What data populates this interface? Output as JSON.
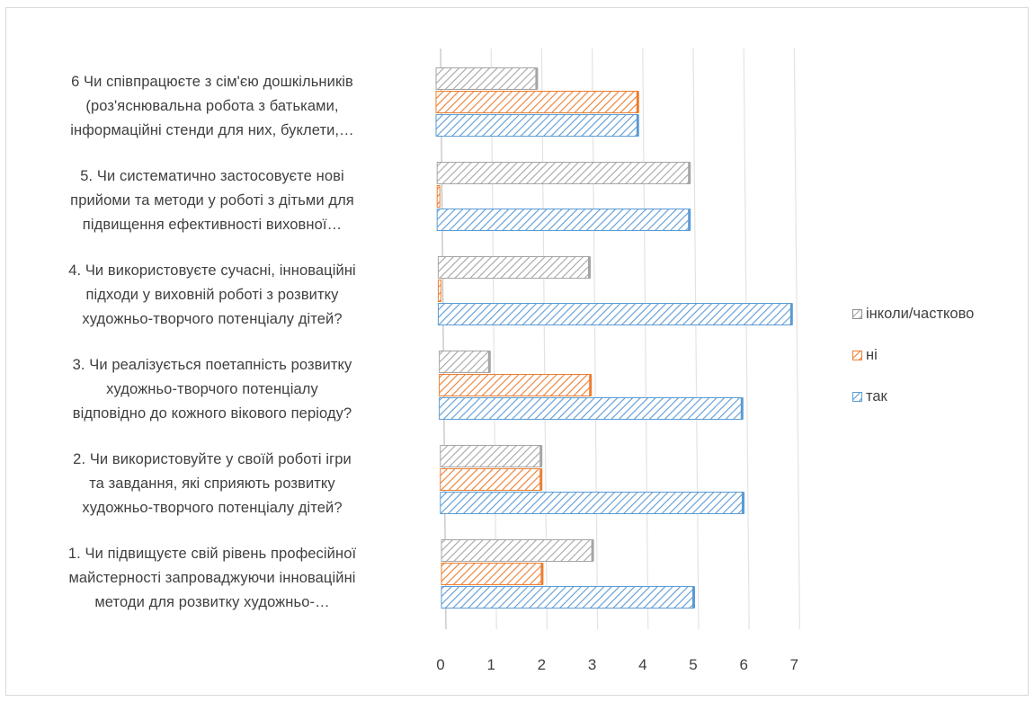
{
  "chart_data": {
    "type": "bar",
    "orientation": "horizontal",
    "categories": [
      "6 Чи співпрацюєте з сім'єю дошкільників (роз'яснювальна робота з батьками, інформаційні стенди для них, буклети,…",
      "5. Чи систематично застосовуєте нові прийоми та методи у роботі з дітьми для підвищення ефективності виховної…",
      "4. Чи використовуєте сучасні, інноваційні підходи у виховній роботі з розвитку художньо-творчого потенціалу дітей?",
      "3. Чи реалізується поетапність розвитку художньо-творчого потенціалу відповідно до кожного вікового періоду?",
      "2. Чи використовуйте у своїй роботі ігри та завдання, які сприяють розвитку художньо-творчого потенціалу дітей?",
      "1. Чи підвищуєте свій рівень професійної майстерності запроваджуючи інноваційні методи для розвитку художньо-…"
    ],
    "category_lines": [
      [
        "6 Чи співпрацюєте з сім'єю дошкільників",
        "(роз'яснювальна робота з батьками,",
        "інформаційні стенди для них, буклети,…"
      ],
      [
        "5. Чи систематично застосовуєте нові",
        "прийоми та методи у роботі з дітьми для",
        "підвищення ефективності виховної…"
      ],
      [
        "4. Чи використовуєте сучасні, інноваційні",
        "підходи у виховній роботі з розвитку",
        "художньо-творчого потенціалу дітей?"
      ],
      [
        "3. Чи реалізується поетапність розвитку",
        "художньо-творчого потенціалу",
        "відповідно до кожного вікового періоду?"
      ],
      [
        "2. Чи використовуйте у своїй роботі ігри",
        "та завдання, які сприяють розвитку",
        "художньо-творчого потенціалу дітей?"
      ],
      [
        "1. Чи підвищуєте свій рівень професійної",
        "майстерності запроваджуючи інноваційні",
        "методи для розвитку художньо-…"
      ]
    ],
    "series": [
      {
        "name": "інколи/частково",
        "color": "#a5a5a5",
        "values": [
          2,
          5,
          3,
          1,
          2,
          3
        ]
      },
      {
        "name": "ні",
        "color": "#ed7d31",
        "values": [
          4,
          0,
          0,
          3,
          2,
          2
        ]
      },
      {
        "name": "так",
        "color": "#5b9bd5",
        "values": [
          4,
          5,
          7,
          6,
          6,
          5
        ]
      }
    ],
    "legend_order": [
      "інколи/частково",
      "ні",
      "так"
    ],
    "xlim": [
      0,
      7
    ],
    "xticks": [
      "0",
      "1",
      "2",
      "3",
      "4",
      "5",
      "6",
      "7"
    ],
    "grid": true,
    "legend_position": "right",
    "title": "",
    "xlabel": "",
    "ylabel": ""
  }
}
